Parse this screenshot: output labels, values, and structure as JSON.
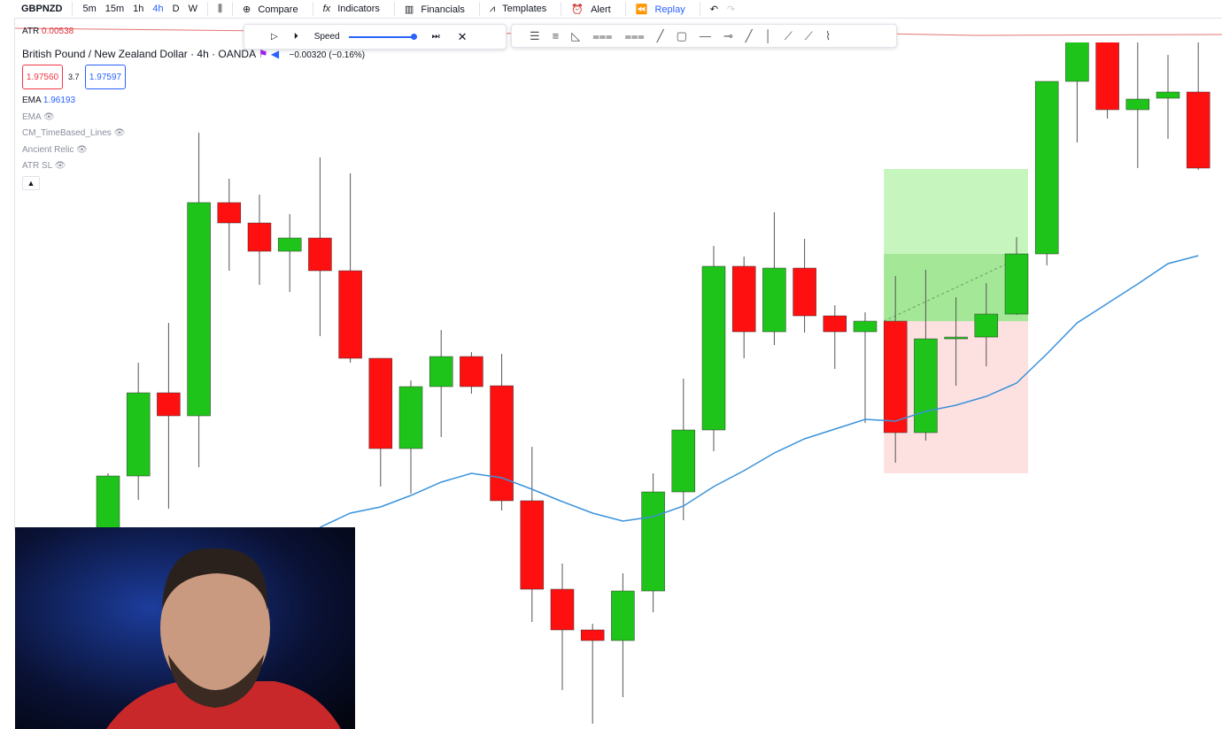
{
  "toolbar": {
    "symbol": "GBPNZD",
    "intervals": [
      "5m",
      "15m",
      "1h",
      "4h",
      "D",
      "W"
    ],
    "buttons": [
      "Compare",
      "Indicators",
      "Financials",
      "Templates",
      "Alert",
      "Replay"
    ]
  },
  "replay_bar": {
    "speed_label": "Speed"
  },
  "legend": {
    "atr_label": "ATR",
    "atr_value": "0.00538",
    "title": "British Pound / New Zealand Dollar · 4h · OANDA",
    "change": "−0.00320 (−0.16%)",
    "bid": "1.97560",
    "spread": "3.7",
    "ask": "1.97597",
    "ema_value": "1.96193",
    "indicators": [
      "EMA",
      "CM_TimeBased_Lines",
      "Ancient Relic",
      "ATR SL"
    ]
  },
  "chart_data": {
    "type": "candlestick",
    "categories": [
      null,
      null,
      null,
      null,
      null,
      null,
      null,
      null,
      null,
      null,
      null,
      null,
      null,
      null,
      null,
      null,
      null,
      null,
      null,
      null,
      null,
      null,
      null,
      null,
      null,
      null,
      null,
      null,
      null,
      null,
      null,
      null,
      null,
      null,
      null,
      null,
      null
    ],
    "open": [
      1.91528,
      1.92676,
      1.93992,
      1.93628,
      1.97002,
      1.9668,
      1.96232,
      1.96442,
      1.95924,
      1.94538,
      1.9311,
      1.9409,
      1.94566,
      1.94104,
      1.92284,
      1.90884,
      1.9024,
      1.90072,
      1.90856,
      1.92424,
      1.93404,
      1.95994,
      1.94958,
      1.95966,
      1.9521,
      1.94958,
      1.95126,
      1.93362,
      1.94846,
      1.94874,
      1.95238,
      1.9619,
      1.9892,
      1.99648,
      1.98472,
      1.98654,
      1.98752
    ],
    "high": [
      1.92718,
      1.94468,
      1.95098,
      1.98108,
      1.9738,
      1.97128,
      1.9682,
      1.97716,
      1.97464,
      1.94538,
      1.94188,
      1.94986,
      1.94636,
      1.94608,
      1.93138,
      1.9129,
      1.90338,
      1.91136,
      1.92718,
      1.94216,
      1.96316,
      1.96148,
      1.96848,
      1.96428,
      1.95378,
      1.95266,
      1.9584,
      1.95938,
      1.95504,
      1.95728,
      1.96456,
      1.9892,
      1.99648,
      1.99648,
      1.99648,
      1.9934,
      1.99578
    ],
    "low": [
      1.91388,
      1.92298,
      1.92158,
      1.92816,
      1.95924,
      1.957,
      1.95588,
      1.94888,
      1.94468,
      1.92508,
      1.92396,
      1.93292,
      1.93978,
      1.9213,
      1.90366,
      1.89288,
      1.88756,
      1.89176,
      1.9052,
      1.91976,
      1.93068,
      1.94538,
      1.94748,
      1.94944,
      1.9437,
      1.93516,
      1.92886,
      1.93236,
      1.94104,
      1.94412,
      1.95224,
      1.96008,
      1.97954,
      1.98332,
      1.97548,
      1.9801,
      1.9752
    ],
    "close": [
      1.92676,
      1.93992,
      1.93628,
      1.97002,
      1.9668,
      1.96232,
      1.96442,
      1.95924,
      1.94538,
      1.9311,
      1.9409,
      1.94566,
      1.9409,
      1.92284,
      1.90884,
      1.9024,
      1.90072,
      1.90856,
      1.92424,
      1.93404,
      1.95994,
      1.94958,
      1.95966,
      1.9521,
      1.94958,
      1.95126,
      1.93362,
      1.94846,
      1.94874,
      1.95238,
      1.9619,
      1.9892,
      1.99648,
      1.98472,
      1.9864,
      1.98752,
      1.97548
    ],
    "up_color": "#1fc41a",
    "down_color": "#ff1010",
    "series": [
      {
        "name": "EMA",
        "color": "#3a92db",
        "values": [
          null,
          null,
          null,
          null,
          null,
          null,
          null,
          1.91864,
          1.92088,
          1.92186,
          1.92368,
          1.92578,
          1.92718,
          1.92648,
          1.92466,
          1.9227,
          1.92088,
          1.91962,
          1.92032,
          1.922,
          1.92508,
          1.9276,
          1.9304,
          1.93264,
          1.93418,
          1.93572,
          1.93544,
          1.93698,
          1.93796,
          1.93936,
          1.94146,
          1.94608,
          1.95098,
          1.95406,
          1.95714,
          1.96036,
          1.96162
        ]
      }
    ],
    "position": {
      "target": 1.97534,
      "entry": 1.95126,
      "stop": 1.92718
    },
    "ylim": [
      1.88672,
      1.999
    ]
  }
}
